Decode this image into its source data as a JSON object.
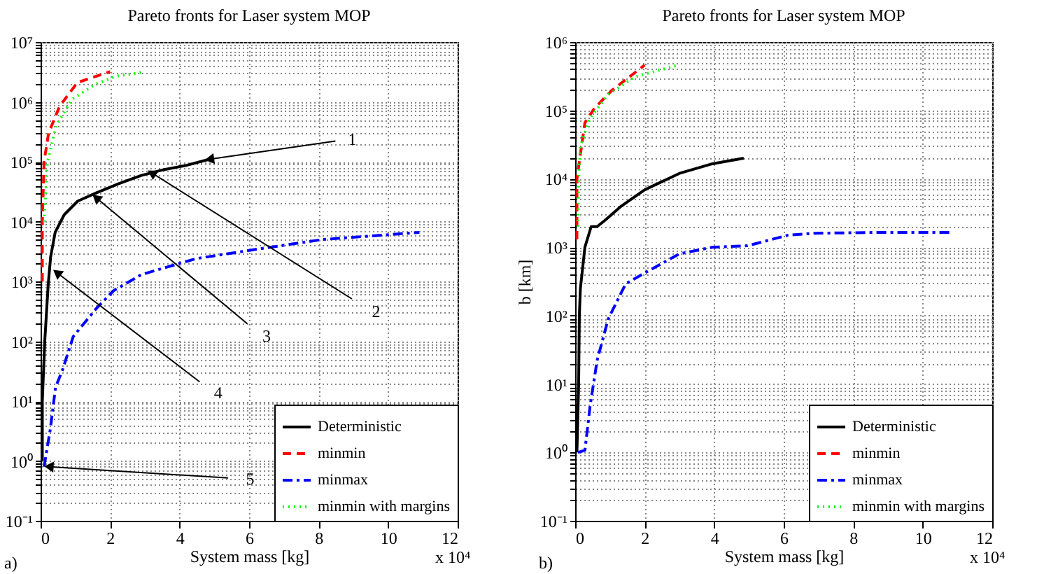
{
  "chart_data": [
    {
      "type": "line",
      "title": "Pareto fronts for Laser system MOP",
      "xlabel": "System mass [kg]",
      "xlim": [
        0,
        12
      ],
      "xticks": [
        0,
        2,
        4,
        6,
        8,
        10,
        12
      ],
      "ylim": [
        0.1,
        10000000
      ],
      "yticks": [
        {
          "value": 0.1,
          "label": "10⁻¹"
        },
        {
          "value": 1,
          "label": "10⁰"
        },
        {
          "value": 10,
          "label": "10¹"
        },
        {
          "value": 100,
          "label": "10²"
        },
        {
          "value": 1000,
          "label": "10³"
        },
        {
          "value": 10000,
          "label": "10⁴"
        },
        {
          "value": 100000,
          "label": "10⁵"
        },
        {
          "value": 1000000,
          "label": "10⁶"
        },
        {
          "value": 10000000,
          "label": "10⁷"
        }
      ],
      "log": "y",
      "grid": true,
      "legend": "bottom right",
      "series": [
        {
          "name": "Deterministic",
          "color": "#000000",
          "line_style": "solid",
          "x": [
            0.05,
            0.05,
            0.12,
            0.22,
            0.29,
            0.42,
            0.68,
            1.07,
            1.6,
            2.25,
            2.9,
            3.56,
            4.2,
            4.86
          ],
          "values": [
            1,
            10,
            100,
            900,
            2600,
            6600,
            13000,
            22000,
            30000,
            43000,
            59000,
            74000,
            87000,
            110000
          ]
        },
        {
          "name": "minmin",
          "color": "#ff0000",
          "line_style": "dashed",
          "x": [
            0.05,
            0.05,
            0.1,
            0.23,
            0.55,
            1.06,
            2.0
          ],
          "values": [
            1000,
            10000,
            100000,
            300000,
            850000,
            2100000,
            3200000
          ]
        },
        {
          "name": "minmax",
          "color": "#0000ff",
          "line_style": "dashdot",
          "x": [
            0.1,
            0.28,
            0.43,
            0.63,
            0.94,
            1.6,
            2.1,
            2.9,
            4.47,
            6.3,
            8.1,
            10.9
          ],
          "values": [
            0.8,
            3.4,
            17,
            33,
            120,
            350,
            700,
            1300,
            2400,
            3500,
            5000,
            6600
          ]
        },
        {
          "name": "minmin with margins",
          "color": "#00ff00",
          "line_style": "dotted",
          "x": [
            0.1,
            0.2,
            0.45,
            0.9,
            1.6,
            2.2,
            2.9
          ],
          "values": [
            10000,
            100000,
            400000,
            1100000,
            2000000,
            2700000,
            3100000
          ]
        }
      ],
      "annotations": [
        "a)",
        "x 10⁴",
        {
          "text": "1",
          "x": 4.86,
          "y": 110000
        },
        {
          "text": "2",
          "x": 3.2,
          "y": 65000
        },
        {
          "text": "3",
          "x": 1.6,
          "y": 25000
        },
        {
          "text": "4",
          "x": 0.47,
          "y": 1400
        },
        {
          "text": "5",
          "x": 0.24,
          "y": 0.8
        }
      ]
    },
    {
      "type": "line",
      "title": "Pareto fronts for Laser system MOP",
      "xlabel": "System mass [kg]",
      "ylabel": "b [km]",
      "xlim": [
        0,
        12
      ],
      "xticks": [
        0,
        2,
        4,
        6,
        8,
        10,
        12
      ],
      "ylim": [
        0.1,
        1000000
      ],
      "yticks": [
        {
          "value": 0.1,
          "label": "10⁻¹"
        },
        {
          "value": 1,
          "label": "10⁰"
        },
        {
          "value": 10,
          "label": "10¹"
        },
        {
          "value": 100,
          "label": "10²"
        },
        {
          "value": 1000,
          "label": "10³"
        },
        {
          "value": 10000,
          "label": "10⁴"
        },
        {
          "value": 100000,
          "label": "10⁵"
        },
        {
          "value": 1000000,
          "label": "10⁶"
        }
      ],
      "log": "y",
      "grid": true,
      "legend": "bottom right",
      "series": [
        {
          "name": "Deterministic",
          "color": "#000000",
          "line_style": "solid",
          "x": [
            0.05,
            0.1,
            0.12,
            0.15,
            0.28,
            0.46,
            0.63,
            0.87,
            1.33,
            2.0,
            3.0,
            3.95,
            4.85
          ],
          "values": [
            1,
            10,
            100,
            250,
            1000,
            2000,
            2000,
            2500,
            4000,
            6900,
            12000,
            16600,
            20000
          ]
        },
        {
          "name": "minmin",
          "color": "#ff0000",
          "line_style": "dashed",
          "x": [
            0.05,
            0.05,
            0.28,
            0.55,
            1.05,
            2.0
          ],
          "values": [
            1300,
            10000,
            66000,
            107000,
            195000,
            460000
          ]
        },
        {
          "name": "minmax",
          "color": "#0000ff",
          "line_style": "dashdot",
          "x": [
            0.08,
            0.28,
            0.43,
            0.63,
            0.95,
            1.45,
            2.0,
            3.0,
            3.95,
            4.96,
            6.13,
            6.9,
            8.9,
            10.8
          ],
          "values": [
            1,
            1.07,
            4.8,
            22,
            89,
            290,
            420,
            800,
            1000,
            1050,
            1500,
            1600,
            1650,
            1650
          ]
        },
        {
          "name": "minmin with margins",
          "color": "#00ff00",
          "line_style": "dotted",
          "x": [
            0.08,
            0.1,
            0.15,
            0.43,
            0.95,
            1.72,
            2.97
          ],
          "values": [
            2000,
            10000,
            30000,
            78000,
            170000,
            310000,
            460000
          ]
        }
      ],
      "annotations": [
        "b)",
        "x 10⁴"
      ]
    }
  ]
}
